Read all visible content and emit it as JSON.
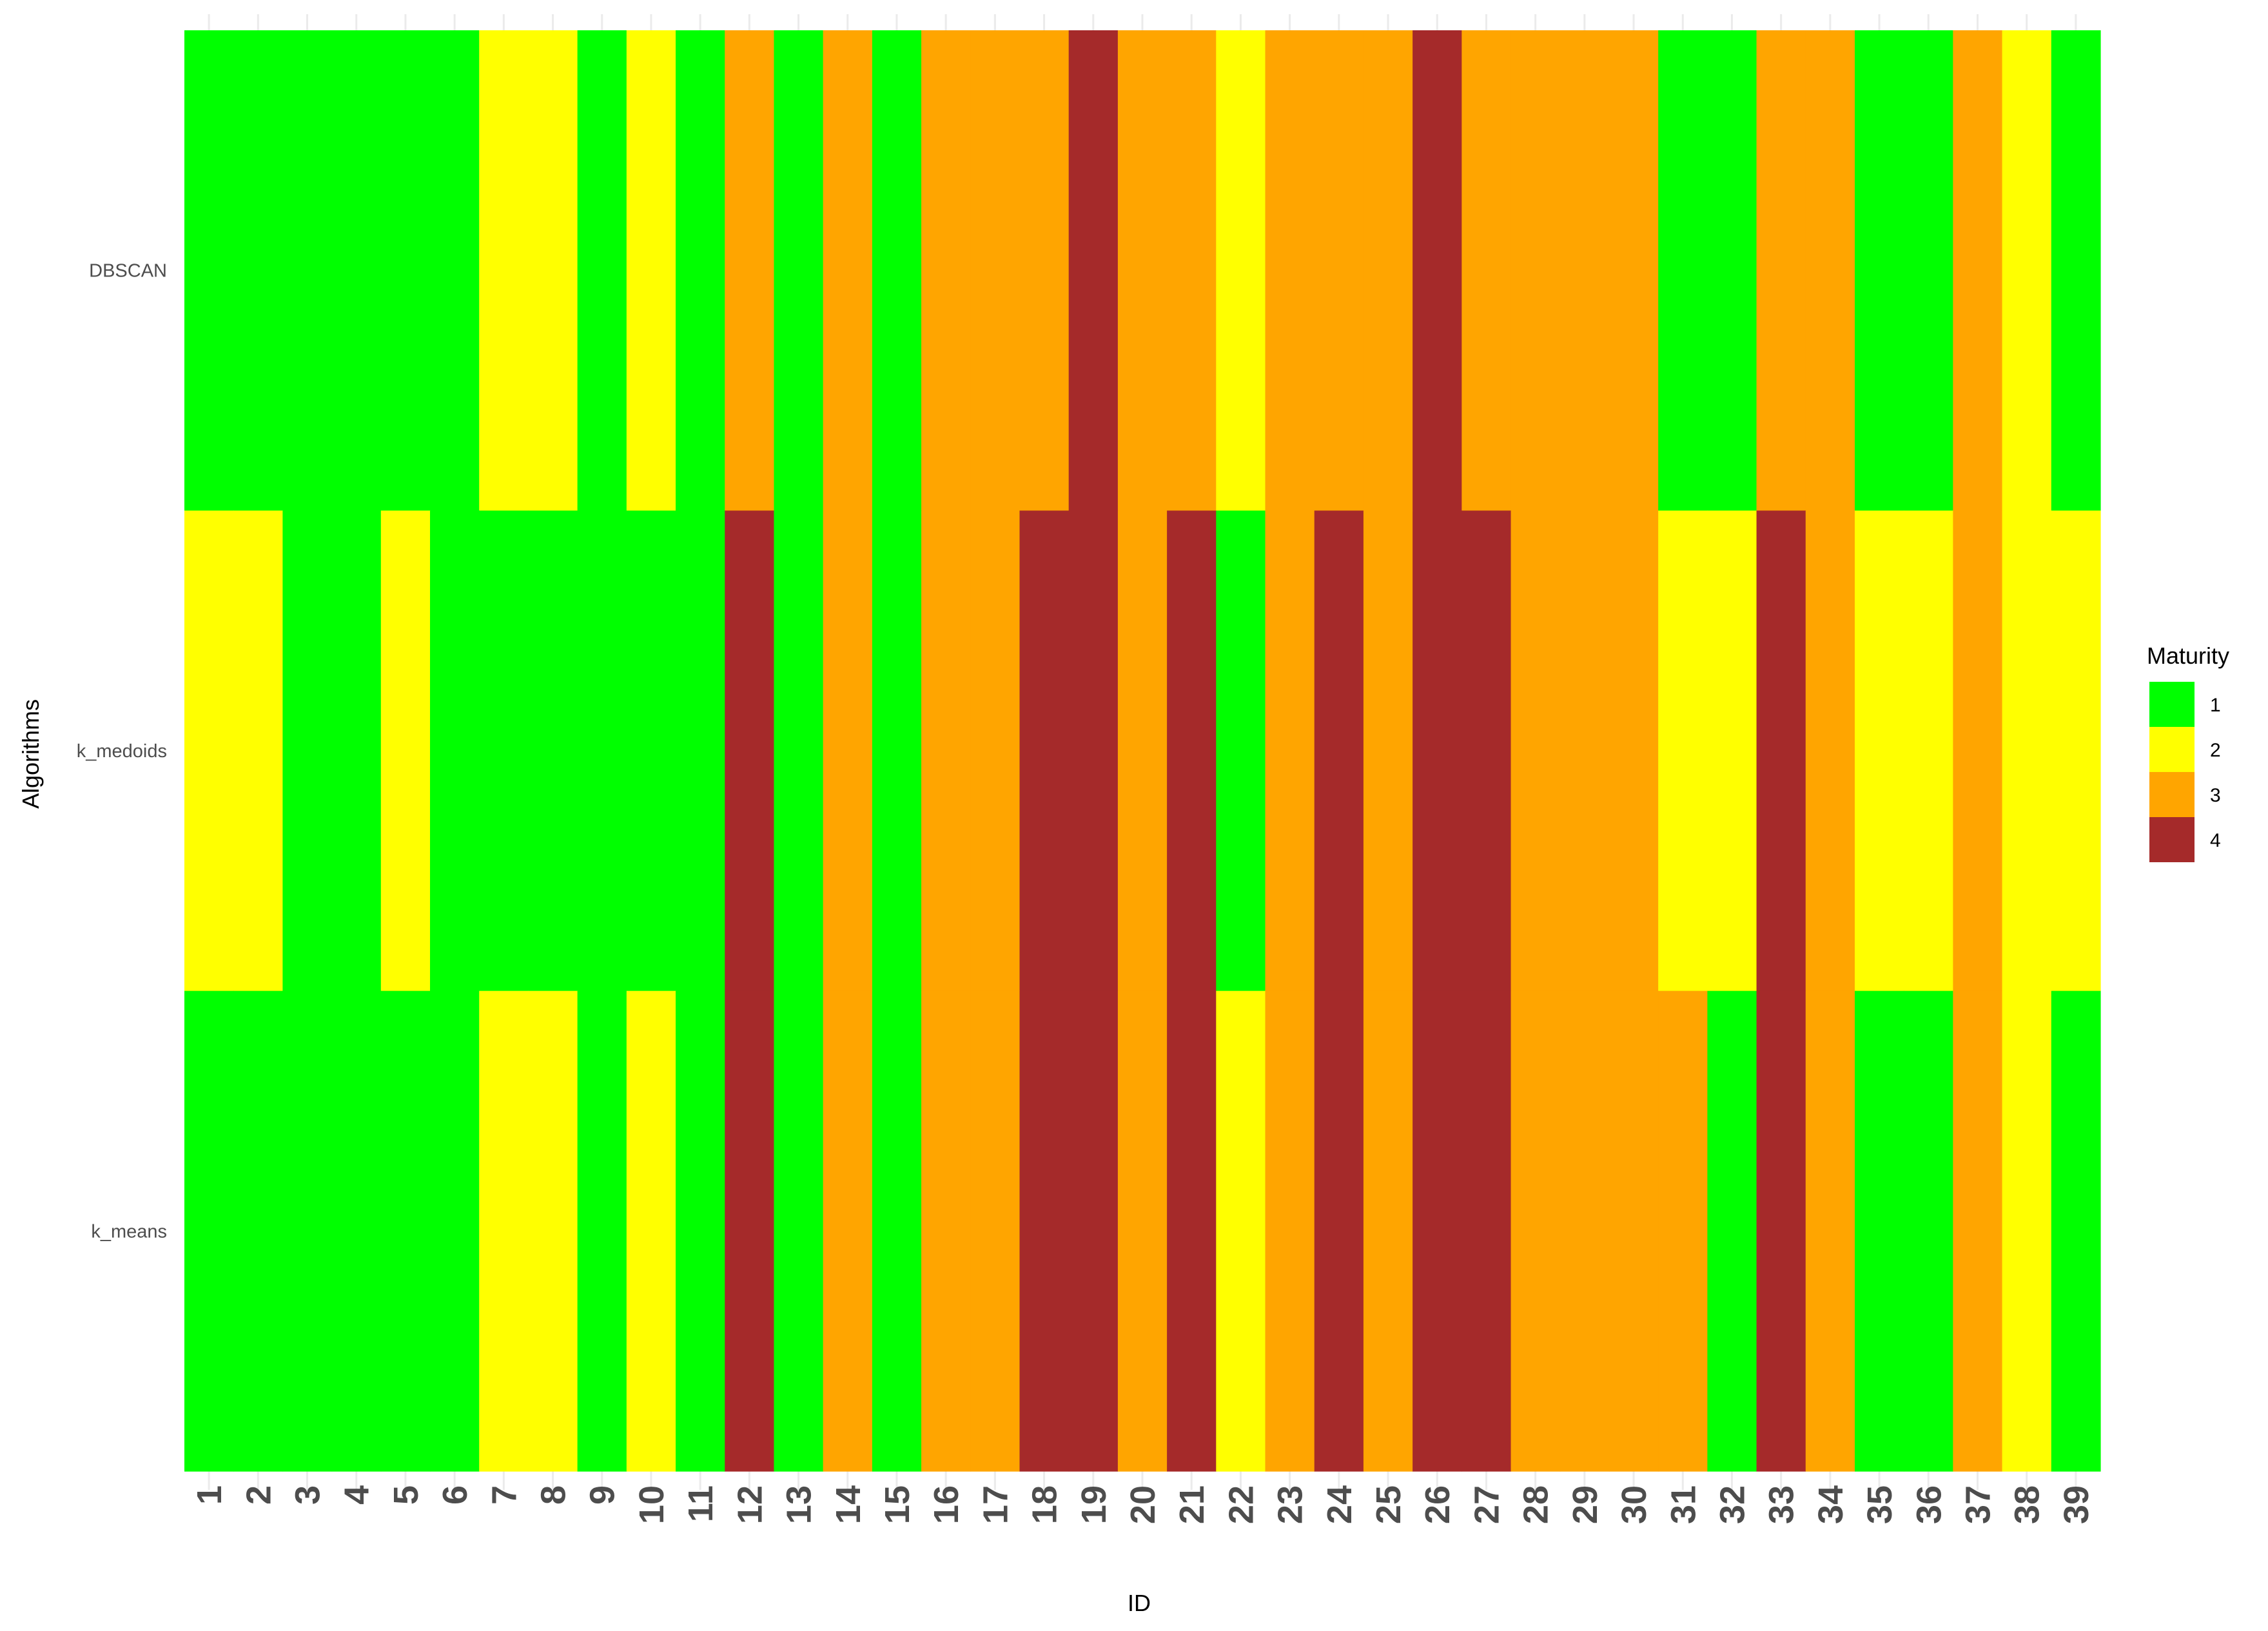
{
  "chart_data": {
    "type": "heatmap",
    "title": "",
    "xlabel": "ID",
    "ylabel": "Algorithms",
    "x": [
      "1",
      "2",
      "3",
      "4",
      "5",
      "6",
      "7",
      "8",
      "9",
      "10",
      "11",
      "12",
      "13",
      "14",
      "15",
      "16",
      "17",
      "18",
      "19",
      "20",
      "21",
      "22",
      "23",
      "24",
      "25",
      "26",
      "27",
      "28",
      "29",
      "30",
      "31",
      "32",
      "33",
      "34",
      "35",
      "36",
      "37",
      "38",
      "39"
    ],
    "y": [
      "DBSCAN",
      "k_medoids",
      "k_means"
    ],
    "values": [
      [
        1,
        1,
        1,
        1,
        1,
        1,
        2,
        2,
        1,
        2,
        1,
        3,
        1,
        3,
        1,
        3,
        3,
        3,
        4,
        3,
        3,
        2,
        3,
        3,
        3,
        4,
        3,
        3,
        3,
        3,
        1,
        1,
        3,
        3,
        1,
        1,
        3,
        2,
        1
      ],
      [
        2,
        2,
        1,
        1,
        2,
        1,
        1,
        1,
        1,
        1,
        1,
        4,
        1,
        3,
        1,
        3,
        3,
        4,
        4,
        3,
        4,
        1,
        3,
        4,
        3,
        4,
        4,
        3,
        3,
        3,
        2,
        2,
        4,
        3,
        2,
        2,
        3,
        2,
        2
      ],
      [
        1,
        1,
        1,
        1,
        1,
        1,
        2,
        2,
        1,
        2,
        1,
        4,
        1,
        3,
        1,
        3,
        3,
        4,
        4,
        3,
        4,
        2,
        3,
        4,
        3,
        4,
        4,
        3,
        3,
        3,
        3,
        1,
        4,
        3,
        1,
        1,
        3,
        2,
        1
      ]
    ],
    "legend": {
      "title": "Maturity",
      "position": "right",
      "levels": [
        "1",
        "2",
        "3",
        "4"
      ]
    },
    "colors": {
      "1": "#00ff00",
      "2": "#ffff00",
      "3": "#ffa500",
      "4": "#a52a2a"
    },
    "grid": true
  }
}
